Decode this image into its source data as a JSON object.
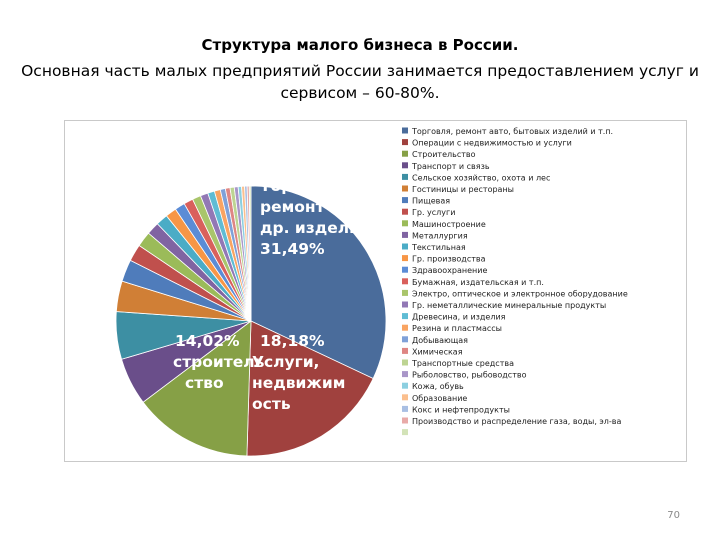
{
  "slide": {
    "title": "Структура малого бизнеса в России.",
    "subtitle": "Основная часть малых предприятий России занимается предоставлением услуг и сервисом – 60-80%.",
    "page_number": "70"
  },
  "chart_data": {
    "type": "pie",
    "title": "",
    "legend_position": "right",
    "slices": [
      {
        "label": "Торговля, ремонт авто, бытовых изделий и т.п.",
        "value": 31.49,
        "color": "#4a6c9b"
      },
      {
        "label": "Операции с недвижимостью и услуги",
        "value": 18.18,
        "color": "#a0413e"
      },
      {
        "label": "Строительство",
        "value": 14.02,
        "color": "#86a046"
      },
      {
        "label": "Транспорт и связь",
        "value": 5.6,
        "color": "#6a4e8a"
      },
      {
        "label": "Сельское хозяйство, охота и лес",
        "value": 5.6,
        "color": "#3d8fa3"
      },
      {
        "label": "Гостиницы и рестораны",
        "value": 3.6,
        "color": "#d07f36"
      },
      {
        "label": "Пищевая",
        "value": 2.6,
        "color": "#4f7cbb"
      },
      {
        "label": "Гр. услуги",
        "value": 2.0,
        "color": "#c0504d"
      },
      {
        "label": "Машиностроение",
        "value": 1.8,
        "color": "#9bbb59"
      },
      {
        "label": "Металлургия",
        "value": 1.5,
        "color": "#8064a2"
      },
      {
        "label": "Текстильная",
        "value": 1.4,
        "color": "#4bacc6"
      },
      {
        "label": "Гр. производства",
        "value": 1.3,
        "color": "#f79646"
      },
      {
        "label": "Здравоохранение",
        "value": 1.2,
        "color": "#5b8cd6"
      },
      {
        "label": "Бумажная, издательская и т.п.",
        "value": 1.1,
        "color": "#d9605c"
      },
      {
        "label": "Электро, оптическое и электронное оборудование",
        "value": 1.0,
        "color": "#a9c56b"
      },
      {
        "label": "Гр. неметаллические минеральные продукты",
        "value": 0.9,
        "color": "#9278b5"
      },
      {
        "label": "Древесина, и изделия",
        "value": 0.8,
        "color": "#5fbcd4"
      },
      {
        "label": "Резина и пластмассы",
        "value": 0.7,
        "color": "#f9a462"
      },
      {
        "label": "Добывающая",
        "value": 0.6,
        "color": "#7fa1d8"
      },
      {
        "label": "Химическая",
        "value": 0.55,
        "color": "#de8684"
      },
      {
        "label": "Транспортные средства",
        "value": 0.5,
        "color": "#bdd492"
      },
      {
        "label": "Рыболовство, рыбоводство",
        "value": 0.45,
        "color": "#a996c8"
      },
      {
        "label": "Кожа, обувь",
        "value": 0.4,
        "color": "#8ccfe0"
      },
      {
        "label": "Образование",
        "value": 0.35,
        "color": "#fbbf8e"
      },
      {
        "label": "Кокс и нефтепродукты",
        "value": 0.3,
        "color": "#a9bfe3"
      },
      {
        "label": "Производство и распределение газа, воды, эл-ва",
        "value": 0.25,
        "color": "#e8aaa8"
      },
      {
        "label": "",
        "value": 0.2,
        "color": "#d3e3b8"
      }
    ],
    "annotations": [
      {
        "slice": 0,
        "color": "#ffffff",
        "lines": [
          "Торговля,",
          "ремонт авто,",
          "др. изделий",
          "31,49%"
        ]
      },
      {
        "slice": 1,
        "color": "#ffffff",
        "lines": [
          "18,18%",
          "Услуги,",
          "недвижим",
          "ость"
        ]
      },
      {
        "slice": 2,
        "color": "#ffffff",
        "lines": [
          "14,02%",
          "строитель",
          "ство"
        ]
      }
    ]
  }
}
